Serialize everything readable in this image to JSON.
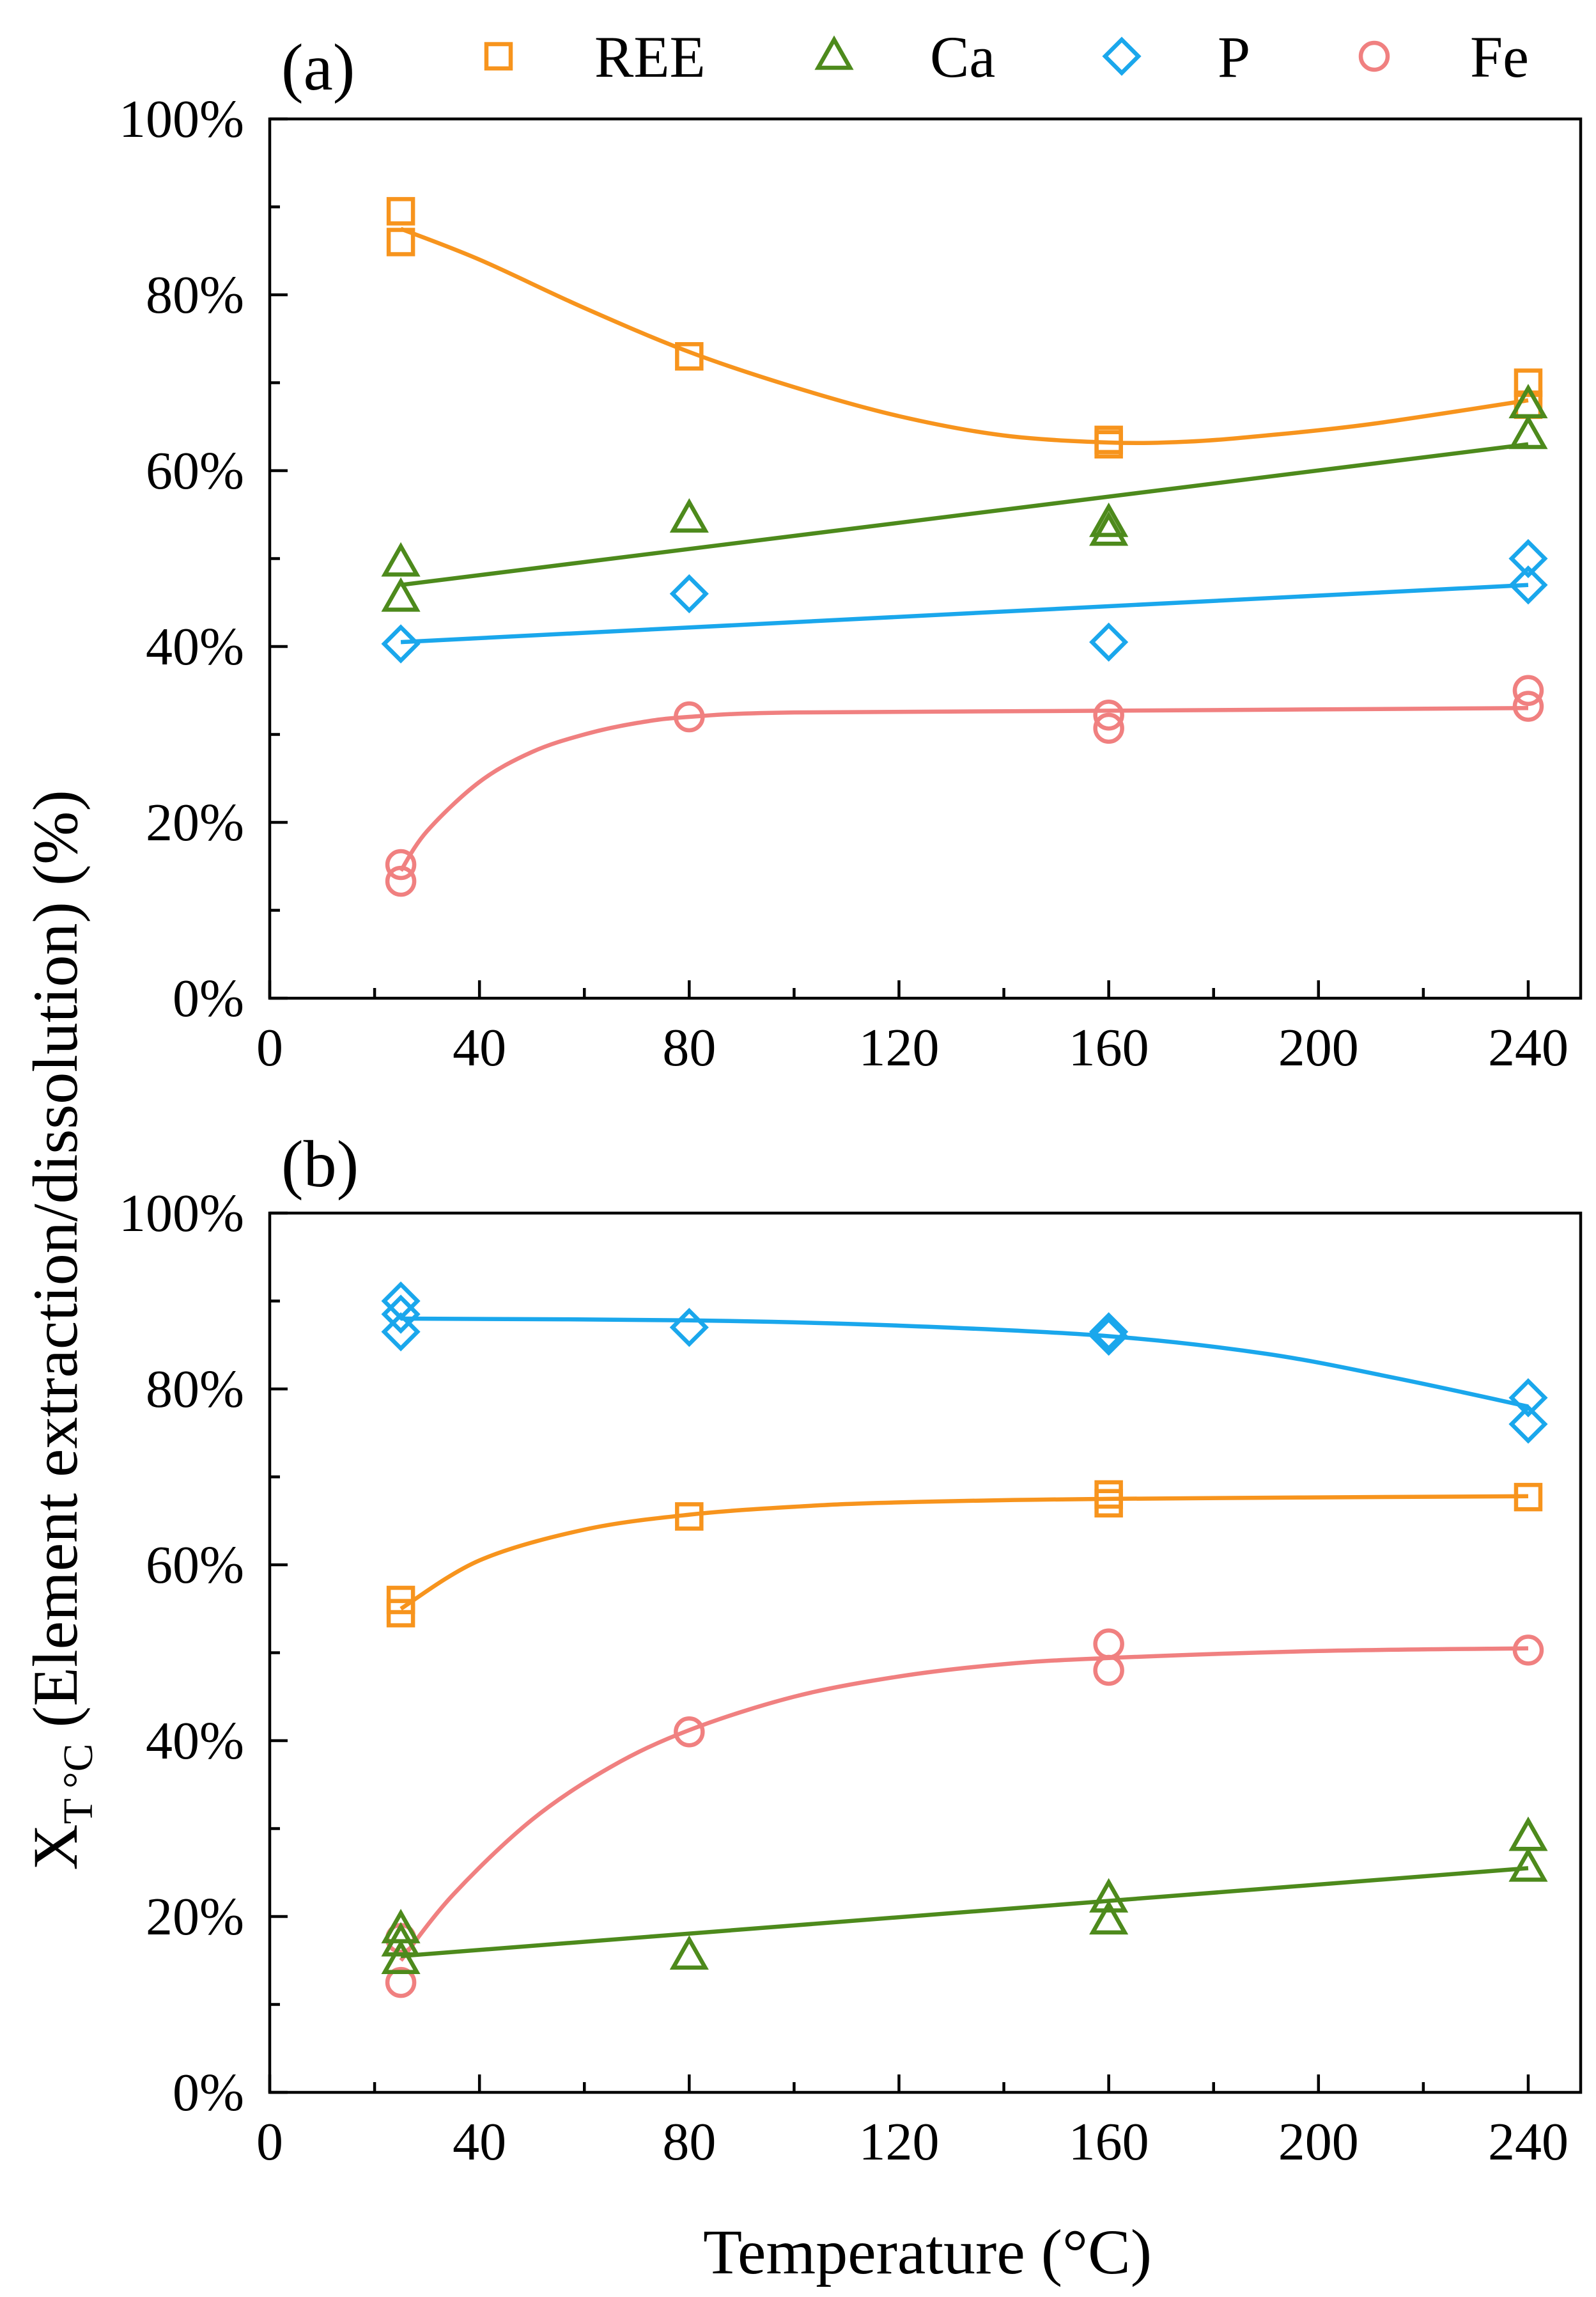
{
  "colors": {
    "REE": "#F7941D",
    "Ca": "#4D8A1C",
    "P": "#1AA7EC",
    "Fe": "#F08080"
  },
  "legend": [
    {
      "key": "REE",
      "label": "REE",
      "marker": "square"
    },
    {
      "key": "Ca",
      "label": "Ca",
      "marker": "triangle"
    },
    {
      "key": "P",
      "label": "P",
      "marker": "diamond"
    },
    {
      "key": "Fe",
      "label": "Fe",
      "marker": "circle"
    }
  ],
  "y_axis_title": {
    "main": "X",
    "sub": "T °C",
    "rest": " (Element extraction/dissolution) (%)"
  },
  "x_axis_title": "Temperature (°C)",
  "chart_data": [
    {
      "type": "scatter",
      "panel": "(a)",
      "xlim": [
        0,
        250
      ],
      "ylim": [
        0,
        100
      ],
      "x_ticks": [
        0,
        40,
        80,
        120,
        160,
        200,
        240
      ],
      "y_ticks": [
        0,
        20,
        40,
        60,
        80,
        100
      ],
      "y_tick_labels": [
        "0%",
        "20%",
        "40%",
        "60%",
        "80%",
        "100%"
      ],
      "legend_placement": "top",
      "series": [
        {
          "name": "REE",
          "marker": "square",
          "points": [
            [
              25,
              89.5
            ],
            [
              25,
              86
            ],
            [
              80,
              73
            ],
            [
              160,
              63.5
            ],
            [
              160,
              63
            ],
            [
              240,
              70
            ],
            [
              240,
              67.5
            ]
          ],
          "fit": [
            [
              25,
              87.5
            ],
            [
              40,
              84
            ],
            [
              60,
              78.5
            ],
            [
              80,
              73.5
            ],
            [
              100,
              69.5
            ],
            [
              120,
              66.2
            ],
            [
              140,
              64
            ],
            [
              160,
              63.2
            ],
            [
              175,
              63.3
            ],
            [
              190,
              64
            ],
            [
              210,
              65.3
            ],
            [
              240,
              68
            ]
          ]
        },
        {
          "name": "Ca",
          "marker": "triangle",
          "points": [
            [
              25,
              49.5
            ],
            [
              25,
              45.5
            ],
            [
              80,
              54.5
            ],
            [
              160,
              54
            ],
            [
              160,
              53
            ],
            [
              240,
              67.5
            ],
            [
              240,
              64
            ]
          ],
          "fit": [
            [
              25,
              47
            ],
            [
              240,
              63
            ]
          ]
        },
        {
          "name": "P",
          "marker": "diamond",
          "points": [
            [
              25,
              40.3
            ],
            [
              80,
              46
            ],
            [
              160,
              40.5
            ],
            [
              240,
              50
            ],
            [
              240,
              47
            ]
          ],
          "fit": [
            [
              25,
              40.5
            ],
            [
              240,
              47
            ]
          ]
        },
        {
          "name": "Fe",
          "marker": "circle",
          "points": [
            [
              25,
              15.2
            ],
            [
              25,
              13.3
            ],
            [
              80,
              32
            ],
            [
              160,
              32.2
            ],
            [
              160,
              30.7
            ],
            [
              240,
              35
            ],
            [
              240,
              33.2
            ]
          ],
          "fit": [
            [
              25,
              14.5
            ],
            [
              30,
              19
            ],
            [
              40,
              24.6
            ],
            [
              50,
              28
            ],
            [
              60,
              30
            ],
            [
              70,
              31.3
            ],
            [
              80,
              32
            ],
            [
              100,
              32.5
            ],
            [
              160,
              32.7
            ],
            [
              240,
              33
            ]
          ]
        }
      ]
    },
    {
      "type": "scatter",
      "panel": "(b)",
      "xlim": [
        0,
        250
      ],
      "ylim": [
        0,
        100
      ],
      "x_ticks": [
        0,
        40,
        80,
        120,
        160,
        200,
        240
      ],
      "y_ticks": [
        0,
        20,
        40,
        60,
        80,
        100
      ],
      "y_tick_labels": [
        "0%",
        "20%",
        "40%",
        "60%",
        "80%",
        "100%"
      ],
      "series": [
        {
          "name": "P",
          "marker": "diamond",
          "points": [
            [
              25,
              90
            ],
            [
              25,
              88.5
            ],
            [
              25,
              86.5
            ],
            [
              80,
              87
            ],
            [
              160,
              86.5
            ],
            [
              160,
              86
            ],
            [
              240,
              79
            ],
            [
              240,
              76
            ]
          ],
          "fit": [
            [
              25,
              88
            ],
            [
              80,
              87.8
            ],
            [
              120,
              87.2
            ],
            [
              160,
              86
            ],
            [
              190,
              84
            ],
            [
              215,
              81.2
            ],
            [
              240,
              78
            ]
          ]
        },
        {
          "name": "REE",
          "marker": "square",
          "points": [
            [
              25,
              56
            ],
            [
              25,
              54.5
            ],
            [
              80,
              65.5
            ],
            [
              160,
              68
            ],
            [
              160,
              67
            ],
            [
              240,
              67.7
            ]
          ],
          "fit": [
            [
              25,
              55
            ],
            [
              40,
              60.5
            ],
            [
              60,
              64
            ],
            [
              80,
              65.7
            ],
            [
              100,
              66.6
            ],
            [
              120,
              67.1
            ],
            [
              160,
              67.5
            ],
            [
              240,
              67.8
            ]
          ]
        },
        {
          "name": "Fe",
          "marker": "circle",
          "points": [
            [
              25,
              17.5
            ],
            [
              25,
              12.5
            ],
            [
              80,
              41
            ],
            [
              160,
              51
            ],
            [
              160,
              48
            ],
            [
              240,
              50.3
            ]
          ],
          "fit": [
            [
              25,
              15
            ],
            [
              35,
              22.5
            ],
            [
              50,
              31
            ],
            [
              65,
              37
            ],
            [
              80,
              41.2
            ],
            [
              100,
              45
            ],
            [
              120,
              47.3
            ],
            [
              140,
              48.7
            ],
            [
              160,
              49.4
            ],
            [
              200,
              50.2
            ],
            [
              240,
              50.5
            ]
          ]
        },
        {
          "name": "Ca",
          "marker": "triangle",
          "points": [
            [
              25,
              18.5
            ],
            [
              25,
              17
            ],
            [
              25,
              15
            ],
            [
              80,
              15.5
            ],
            [
              160,
              22
            ],
            [
              160,
              19.5
            ],
            [
              240,
              29
            ],
            [
              240,
              25.5
            ]
          ],
          "fit": [
            [
              25,
              15.5
            ],
            [
              240,
              25.5
            ]
          ]
        }
      ]
    }
  ]
}
